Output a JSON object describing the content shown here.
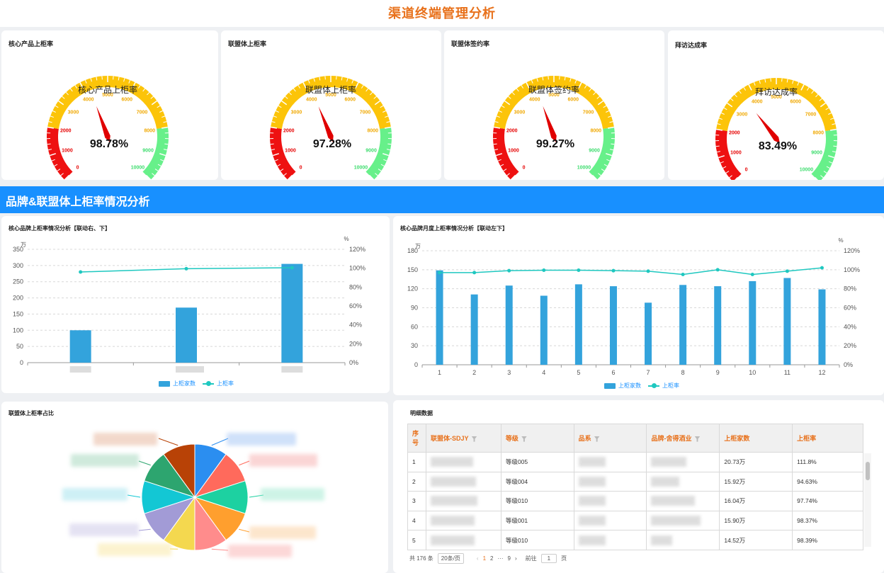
{
  "page": {
    "title": "渠道终端管理分析"
  },
  "gauges": [
    {
      "title": "核心产品上柜率",
      "label": "核心产品上柜率",
      "value": 98.78,
      "display": "98.78%"
    },
    {
      "title": "联盟体上柜率",
      "label": "联盟体上柜率",
      "value": 97.28,
      "display": "97.28%"
    },
    {
      "title": "联盟体签约率",
      "label": "联盟体签约率",
      "value": 99.27,
      "display": "99.27%"
    },
    {
      "title": "拜访达成率",
      "label": "拜访达成率",
      "value": 83.49,
      "display": "83.49%"
    }
  ],
  "gauge_ticks": [
    "0",
    "1000",
    "2000",
    "3000",
    "4000",
    "5000",
    "6000",
    "7000",
    "8000",
    "9000",
    "10000"
  ],
  "gauge_colors": {
    "red": "#ee1111",
    "yellow": "#fcc409",
    "green": "#67f08a"
  },
  "section": {
    "title": "品牌&联盟体上柜率情况分析"
  },
  "brand_chart": {
    "title": "核心品牌上柜率情况分析【联动右、下】",
    "legend_bar": "上柜家数",
    "legend_line": "上柜率"
  },
  "monthly_chart": {
    "title": "核心品牌月度上柜率情况分析【联动左下】",
    "legend_bar": "上柜家数",
    "legend_line": "上柜率"
  },
  "pie_panel": {
    "title": "联盟体上柜率占比"
  },
  "chart_data": [
    {
      "type": "bar",
      "title": "核心品牌上柜率情况分析【联动右、下】",
      "categories": [
        "",
        "",
        ""
      ],
      "y_unit": "万",
      "y2_unit": "%",
      "ylim": [
        0,
        350
      ],
      "yticks": [
        0,
        50,
        100,
        150,
        200,
        250,
        300,
        350
      ],
      "y2lim": [
        0,
        120
      ],
      "y2ticks": [
        "0%",
        "20%",
        "40%",
        "60%",
        "80%",
        "100%",
        "120%"
      ],
      "series": [
        {
          "name": "上柜家数",
          "type": "bar",
          "values": [
            100,
            170,
            305
          ]
        },
        {
          "name": "上柜率",
          "type": "line",
          "axis": "right",
          "values": [
            96,
            99.5,
            100.5
          ]
        }
      ]
    },
    {
      "type": "bar",
      "title": "核心品牌月度上柜率情况分析【联动左下】",
      "categories": [
        "1",
        "2",
        "3",
        "4",
        "5",
        "6",
        "7",
        "8",
        "9",
        "10",
        "11",
        "12"
      ],
      "y_unit": "万",
      "y2_unit": "%",
      "ylim": [
        0,
        180
      ],
      "yticks": [
        0,
        30,
        60,
        90,
        120,
        150,
        180
      ],
      "y2lim": [
        0,
        120
      ],
      "y2ticks": [
        "0%",
        "20%",
        "40%",
        "60%",
        "80%",
        "100%",
        "120%"
      ],
      "series": [
        {
          "name": "上柜家数",
          "type": "bar",
          "values": [
            149,
            111,
            125,
            109,
            127,
            124,
            98,
            126,
            124,
            132,
            137,
            119
          ]
        },
        {
          "name": "上柜率",
          "type": "line",
          "axis": "right",
          "values": [
            97,
            97,
            99,
            99.5,
            99.5,
            99,
            98.5,
            95,
            100,
            95,
            98.5,
            102
          ]
        }
      ]
    },
    {
      "type": "pie",
      "title": "联盟体上柜率占比",
      "slices": [
        {
          "value": 9,
          "color": "#2b8ef0"
        },
        {
          "value": 9,
          "color": "#ff6a5c"
        },
        {
          "value": 9,
          "color": "#1dd1a1"
        },
        {
          "value": 9,
          "color": "#ff9f2e"
        },
        {
          "value": 9,
          "color": "#ff8c8c"
        },
        {
          "value": 9,
          "color": "#f4d84f"
        },
        {
          "value": 9,
          "color": "#a29bd6"
        },
        {
          "value": 9,
          "color": "#13c7d4"
        },
        {
          "value": 9,
          "color": "#2da56f"
        },
        {
          "value": 9,
          "color": "#b84206"
        }
      ]
    }
  ],
  "table": {
    "title": "明细数据",
    "headers": [
      "序号",
      "联盟体-SDJY",
      "等级",
      "品系",
      "品牌-舍得酒业",
      "上柜家数",
      "上柜率"
    ],
    "rows": [
      {
        "idx": "1",
        "level": "等级005",
        "count": "20.73万",
        "rate": "111.8%"
      },
      {
        "idx": "2",
        "level": "等级004",
        "count": "15.92万",
        "rate": "94.63%"
      },
      {
        "idx": "3",
        "level": "等级010",
        "count": "16.04万",
        "rate": "97.74%"
      },
      {
        "idx": "4",
        "level": "等级001",
        "count": "15.90万",
        "rate": "98.37%"
      },
      {
        "idx": "5",
        "level": "等级010",
        "count": "14.52万",
        "rate": "98.39%"
      }
    ]
  },
  "pager": {
    "total": "共 176 条",
    "page_size": "20条/页",
    "prev": "‹",
    "next": "›",
    "p1": "1",
    "p2": "2",
    "ellipsis": "···",
    "p_last": "9",
    "goto": "前往",
    "goto_value": "1",
    "page_word": "页"
  }
}
